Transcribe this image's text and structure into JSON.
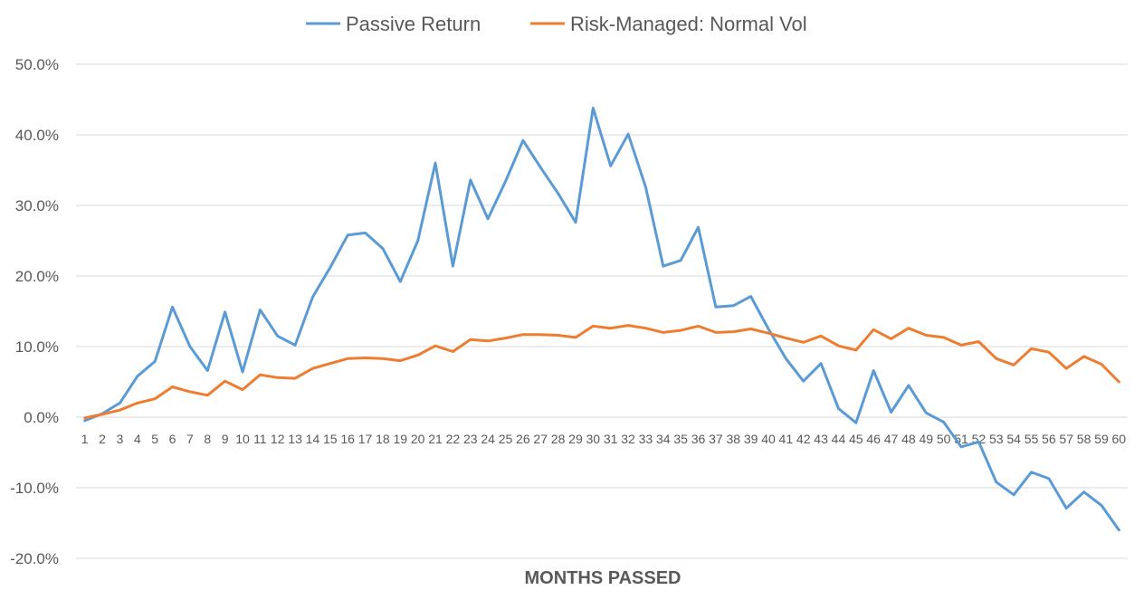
{
  "chart_data": {
    "type": "line",
    "title": "",
    "xlabel": "MONTHS PASSED",
    "ylabel": "",
    "ylim": [
      -20,
      50
    ],
    "yticks": [
      -20,
      -10,
      0,
      10,
      20,
      30,
      40,
      50
    ],
    "ytick_labels": [
      "-20.0%",
      "-10.0%",
      "0.0%",
      "10.0%",
      "20.0%",
      "30.0%",
      "40.0%",
      "50.0%"
    ],
    "grid": "horizontal",
    "legend_position": "top",
    "categories": [
      "1",
      "2",
      "3",
      "4",
      "5",
      "6",
      "7",
      "8",
      "9",
      "10",
      "11",
      "12",
      "13",
      "14",
      "15",
      "16",
      "17",
      "18",
      "19",
      "20",
      "21",
      "22",
      "23",
      "24",
      "25",
      "26",
      "27",
      "28",
      "29",
      "30",
      "31",
      "32",
      "33",
      "34",
      "35",
      "36",
      "37",
      "38",
      "39",
      "40",
      "41",
      "42",
      "43",
      "44",
      "45",
      "46",
      "47",
      "48",
      "49",
      "50",
      "51",
      "52",
      "53",
      "54",
      "55",
      "56",
      "57",
      "58",
      "59",
      "60"
    ],
    "series": [
      {
        "name": "Passive Return",
        "color": "#5b9bd5",
        "values": [
          -0.5,
          0.5,
          2.0,
          5.8,
          7.9,
          15.6,
          10.0,
          6.6,
          14.9,
          6.4,
          15.2,
          11.5,
          10.2,
          17.0,
          21.2,
          25.8,
          26.1,
          23.9,
          19.2,
          25.0,
          36.0,
          21.4,
          33.6,
          28.1,
          33.4,
          39.2,
          35.4,
          31.7,
          27.6,
          43.8,
          35.6,
          40.1,
          32.6,
          21.4,
          22.2,
          26.9,
          15.6,
          15.8,
          17.1,
          12.5,
          8.3,
          5.1,
          7.6,
          1.2,
          -0.8,
          6.6,
          0.7,
          4.5,
          0.6,
          -0.7,
          -4.2,
          -3.5,
          -9.2,
          -11.0,
          -7.8,
          -8.7,
          -12.9,
          -10.6,
          -12.5,
          -16.0
        ]
      },
      {
        "name": "Risk-Managed: Normal Vol",
        "color": "#ed7d31",
        "values": [
          -0.1,
          0.4,
          1.0,
          2.0,
          2.6,
          4.3,
          3.6,
          3.1,
          5.1,
          3.9,
          6.0,
          5.6,
          5.5,
          6.9,
          7.6,
          8.3,
          8.4,
          8.3,
          8.0,
          8.8,
          10.1,
          9.3,
          11.0,
          10.8,
          11.2,
          11.7,
          11.7,
          11.6,
          11.3,
          12.9,
          12.6,
          13.0,
          12.6,
          12.0,
          12.3,
          12.9,
          12.0,
          12.1,
          12.5,
          11.9,
          11.2,
          10.6,
          11.5,
          10.1,
          9.5,
          12.4,
          11.1,
          12.6,
          11.6,
          11.3,
          10.2,
          10.7,
          8.3,
          7.4,
          9.7,
          9.2,
          6.9,
          8.6,
          7.5,
          5.0
        ]
      }
    ]
  }
}
